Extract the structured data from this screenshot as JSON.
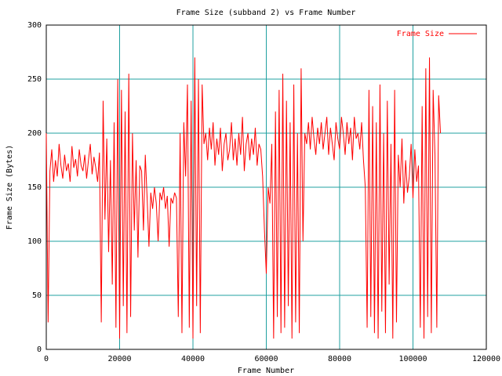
{
  "chart_data": {
    "type": "line",
    "title": "Frame Size (subband 2) vs Frame Number",
    "x_label": "Frame Number",
    "y_label": "Frame Size (Bytes)",
    "xlim": [
      0,
      120000
    ],
    "xticks": [
      0,
      20000,
      40000,
      60000,
      80000,
      100000,
      120000
    ],
    "ylim": [
      0,
      300
    ],
    "yticks": [
      0,
      50,
      100,
      150,
      200,
      250,
      300
    ],
    "grid": true,
    "legend": "upper right",
    "x": [
      0,
      500,
      1000,
      1500,
      2000,
      2500,
      3000,
      3500,
      4000,
      4500,
      5000,
      5500,
      6000,
      6500,
      7000,
      7500,
      8000,
      8500,
      9000,
      9500,
      10000,
      10500,
      11000,
      11500,
      12000,
      12500,
      13000,
      13500,
      14000,
      14500,
      15000,
      15500,
      16000,
      16500,
      17000,
      17500,
      18000,
      18500,
      19000,
      19500,
      20000,
      20500,
      21000,
      21500,
      22000,
      22500,
      23000,
      23500,
      24000,
      24500,
      25000,
      25500,
      26000,
      26500,
      27000,
      27500,
      28000,
      28500,
      29000,
      29500,
      30000,
      30500,
      31000,
      31500,
      32000,
      32500,
      33000,
      33500,
      34000,
      34500,
      35000,
      35500,
      36000,
      36500,
      37000,
      37500,
      38000,
      38500,
      39000,
      39500,
      40000,
      40500,
      41000,
      41500,
      42000,
      42500,
      43000,
      43500,
      44000,
      44500,
      45000,
      45500,
      46000,
      46500,
      47000,
      47500,
      48000,
      48500,
      49000,
      49500,
      50000,
      50500,
      51000,
      51500,
      52000,
      52500,
      53000,
      53500,
      54000,
      54500,
      55000,
      55500,
      56000,
      56500,
      57000,
      57500,
      58000,
      58500,
      59000,
      59500,
      60000,
      60500,
      61000,
      61500,
      62000,
      62500,
      63000,
      63500,
      64000,
      64500,
      65000,
      65500,
      66000,
      66500,
      67000,
      67500,
      68000,
      68500,
      69000,
      69500,
      70000,
      70500,
      71000,
      71500,
      72000,
      72500,
      73000,
      73500,
      74000,
      74500,
      75000,
      75500,
      76000,
      76500,
      77000,
      77500,
      78000,
      78500,
      79000,
      79500,
      80000,
      80500,
      81000,
      81500,
      82000,
      82500,
      83000,
      83500,
      84000,
      84500,
      85000,
      85500,
      86000,
      86500,
      87000,
      87500,
      88000,
      88500,
      89000,
      89500,
      90000,
      90500,
      91000,
      91500,
      92000,
      92500,
      93000,
      93500,
      94000,
      94500,
      95000,
      95500,
      96000,
      96500,
      97000,
      97500,
      98000,
      98500,
      99000,
      99500,
      100000,
      100500,
      101000,
      101500,
      102000,
      102500,
      103000,
      103500,
      104000,
      104500,
      105000,
      105500,
      106000,
      106500,
      107000,
      107500
    ],
    "series": [
      {
        "name": "Frame Size",
        "color": "#ff0000",
        "values": [
          200,
          25,
          165,
          185,
          155,
          175,
          160,
          190,
          170,
          158,
          180,
          165,
          172,
          155,
          188,
          168,
          176,
          160,
          185,
          170,
          165,
          180,
          158,
          175,
          190,
          162,
          178,
          168,
          155,
          182,
          25,
          230,
          120,
          195,
          90,
          175,
          60,
          210,
          20,
          250,
          10,
          240,
          40,
          220,
          15,
          255,
          30,
          200,
          110,
          175,
          85,
          170,
          165,
          110,
          180,
          140,
          95,
          145,
          130,
          150,
          135,
          100,
          145,
          138,
          150,
          130,
          142,
          95,
          140,
          135,
          145,
          140,
          30,
          200,
          15,
          210,
          160,
          245,
          20,
          230,
          10,
          270,
          40,
          250,
          15,
          245,
          190,
          200,
          175,
          205,
          185,
          210,
          170,
          195,
          180,
          205,
          165,
          190,
          200,
          175,
          185,
          210,
          175,
          195,
          170,
          200,
          180,
          215,
          165,
          190,
          200,
          175,
          195,
          180,
          205,
          170,
          190,
          185,
          160,
          110,
          70,
          150,
          135,
          190,
          10,
          220,
          30,
          240,
          15,
          255,
          20,
          230,
          40,
          210,
          10,
          245,
          25,
          200,
          15,
          260,
          100,
          200,
          190,
          210,
          185,
          215,
          195,
          180,
          205,
          190,
          210,
          185,
          200,
          215,
          180,
          205,
          190,
          175,
          210,
          195,
          185,
          215,
          200,
          180,
          210,
          190,
          205,
          175,
          215,
          195,
          200,
          185,
          210,
          175,
          150,
          20,
          240,
          30,
          225,
          15,
          210,
          10,
          245,
          35,
          200,
          15,
          230,
          60,
          190,
          10,
          240,
          25,
          180,
          150,
          195,
          135,
          175,
          145,
          160,
          190,
          140,
          185,
          155,
          170,
          20,
          225,
          10,
          260,
          30,
          270,
          15,
          240,
          180,
          20,
          235,
          200
        ]
      }
    ]
  }
}
